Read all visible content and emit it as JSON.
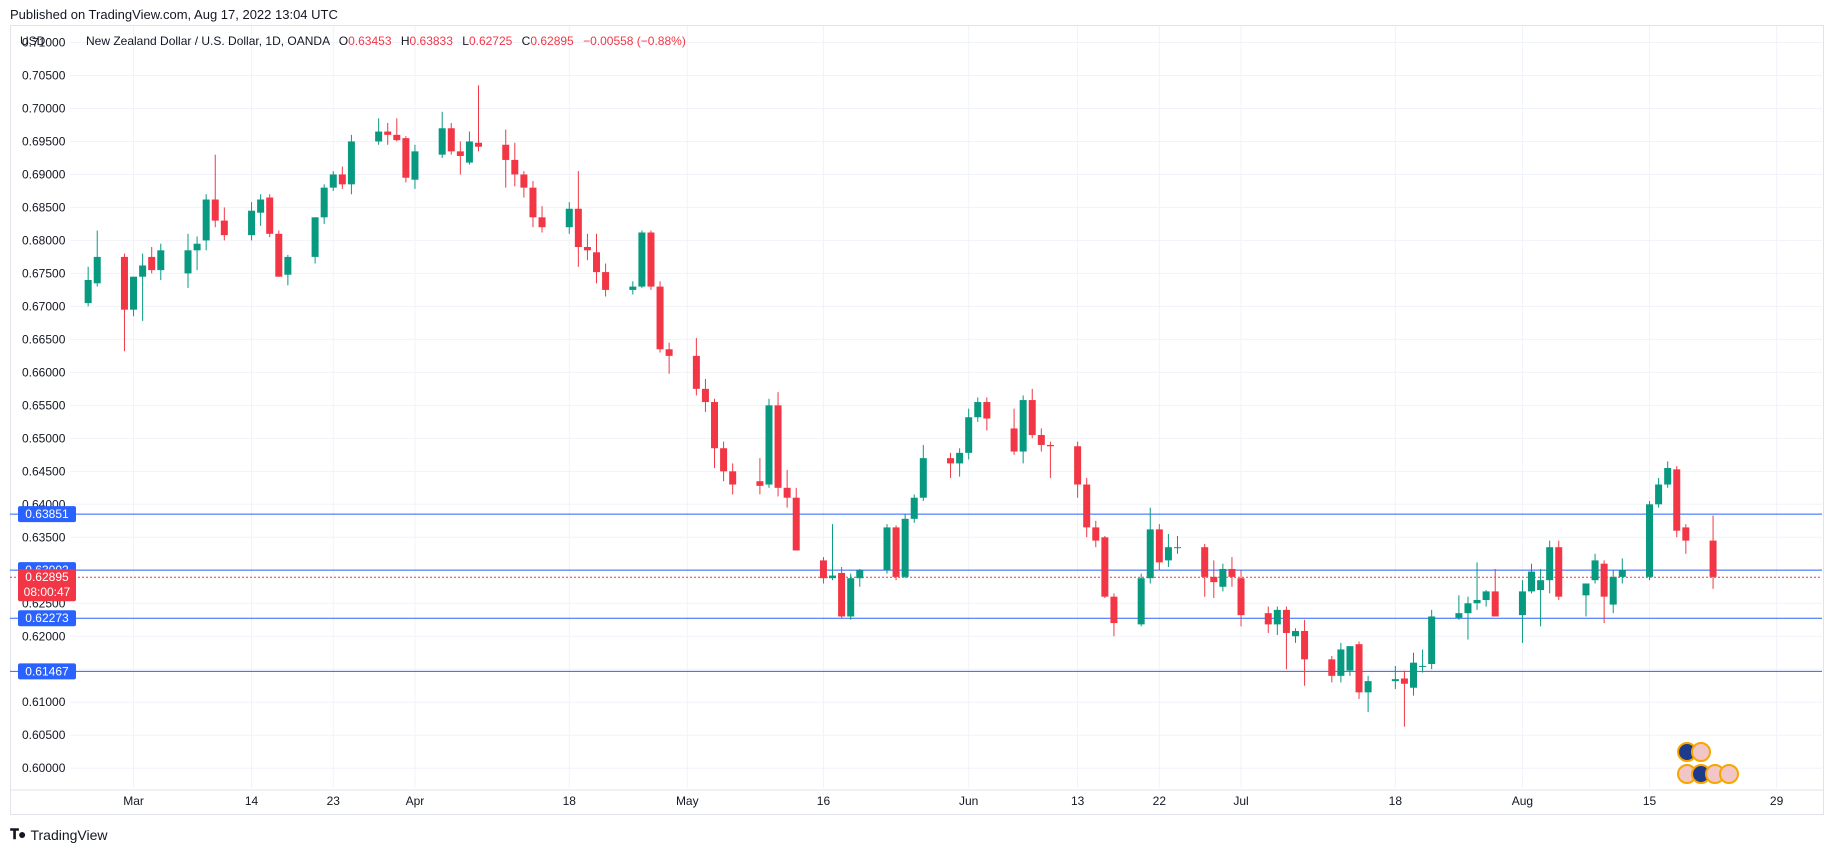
{
  "header": {
    "published_text": "Published on TradingView.com, Aug 17, 2022 13:04 UTC"
  },
  "legend": {
    "currency": "USD",
    "symbol": "New Zealand Dollar / U.S. Dollar, 1D, OANDA",
    "o_label": "O",
    "o_value": "0.63453",
    "h_label": "H",
    "h_value": "0.63833",
    "l_label": "L",
    "l_value": "0.62725",
    "c_label": "C",
    "c_value": "0.62895",
    "change": "−0.00558 (−0.88%)"
  },
  "footer": {
    "brand": "TradingView"
  },
  "chart_data": {
    "type": "candlestick",
    "y_axis": {
      "min": 0.597,
      "max": 0.7125,
      "ticks": [
        "0.71000",
        "0.70500",
        "0.70000",
        "0.69500",
        "0.69000",
        "0.68500",
        "0.68000",
        "0.67500",
        "0.67000",
        "0.66500",
        "0.66000",
        "0.65500",
        "0.65000",
        "0.64500",
        "0.64000",
        "0.63500",
        "0.63000",
        "0.62500",
        "0.62000",
        "0.61500",
        "0.61000",
        "0.60500",
        "0.60000"
      ],
      "tick_values": [
        0.71,
        0.705,
        0.7,
        0.695,
        0.69,
        0.685,
        0.68,
        0.675,
        0.67,
        0.665,
        0.66,
        0.655,
        0.65,
        0.645,
        0.64,
        0.635,
        0.63,
        0.625,
        0.62,
        0.615,
        0.61,
        0.605,
        0.6
      ]
    },
    "x_axis": {
      "labels": [
        "Mar",
        "14",
        "23",
        "Apr",
        "18",
        "May",
        "16",
        "Jun",
        "13",
        "22",
        "Jul",
        "18",
        "Aug",
        "15",
        "29"
      ],
      "label_dates": [
        "2022-03-01",
        "2022-03-14",
        "2022-03-23",
        "2022-04-01",
        "2022-04-18",
        "2022-05-01",
        "2022-05-16",
        "2022-06-01",
        "2022-06-13",
        "2022-06-22",
        "2022-07-01",
        "2022-07-18",
        "2022-08-01",
        "2022-08-15",
        "2022-08-29"
      ],
      "range": [
        "2022-02-22",
        "2022-09-03"
      ]
    },
    "grid": true,
    "colors": {
      "up": "#089981",
      "down": "#f23645",
      "hline": "#2962ff",
      "tag": "#2962ff",
      "last_tag": "#f23645"
    },
    "horizontal_lines": [
      {
        "value": 0.63851,
        "label": "0.63851"
      },
      {
        "value": 0.63002,
        "label": "0.63002"
      },
      {
        "value": 0.62273,
        "label": "0.62273"
      },
      {
        "value": 0.61467,
        "label": "0.61467"
      }
    ],
    "last_price": {
      "value": 0.62895,
      "label": "0.62895",
      "countdown": "08:00:47"
    },
    "candles": [
      {
        "d": "2022-02-24",
        "o": 0.6705,
        "h": 0.676,
        "l": 0.67,
        "c": 0.674
      },
      {
        "d": "2022-02-25",
        "o": 0.6735,
        "h": 0.6815,
        "l": 0.673,
        "c": 0.6775
      },
      {
        "d": "2022-02-28",
        "o": 0.6775,
        "h": 0.678,
        "l": 0.6632,
        "c": 0.6695
      },
      {
        "d": "2022-03-01",
        "o": 0.6695,
        "h": 0.6745,
        "l": 0.6685,
        "c": 0.6745
      },
      {
        "d": "2022-03-02",
        "o": 0.6745,
        "h": 0.678,
        "l": 0.6678,
        "c": 0.6762
      },
      {
        "d": "2022-03-03",
        "o": 0.6775,
        "h": 0.679,
        "l": 0.675,
        "c": 0.6755
      },
      {
        "d": "2022-03-04",
        "o": 0.6755,
        "h": 0.6795,
        "l": 0.674,
        "c": 0.6785
      },
      {
        "d": "2022-03-07",
        "o": 0.675,
        "h": 0.681,
        "l": 0.6728,
        "c": 0.6785
      },
      {
        "d": "2022-03-08",
        "o": 0.6785,
        "h": 0.6806,
        "l": 0.6755,
        "c": 0.6795
      },
      {
        "d": "2022-03-09",
        "o": 0.68,
        "h": 0.687,
        "l": 0.6785,
        "c": 0.6862
      },
      {
        "d": "2022-03-10",
        "o": 0.6862,
        "h": 0.693,
        "l": 0.682,
        "c": 0.683
      },
      {
        "d": "2022-03-11",
        "o": 0.683,
        "h": 0.685,
        "l": 0.68,
        "c": 0.6808
      },
      {
        "d": "2022-03-14",
        "o": 0.6808,
        "h": 0.6858,
        "l": 0.68,
        "c": 0.6845
      },
      {
        "d": "2022-03-15",
        "o": 0.6842,
        "h": 0.687,
        "l": 0.6822,
        "c": 0.6862
      },
      {
        "d": "2022-03-16",
        "o": 0.6865,
        "h": 0.687,
        "l": 0.6805,
        "c": 0.681
      },
      {
        "d": "2022-03-17",
        "o": 0.681,
        "h": 0.6815,
        "l": 0.6745,
        "c": 0.6745
      },
      {
        "d": "2022-03-18",
        "o": 0.6748,
        "h": 0.6778,
        "l": 0.6732,
        "c": 0.6775
      },
      {
        "d": "2022-03-21",
        "o": 0.6775,
        "h": 0.6835,
        "l": 0.6765,
        "c": 0.6835
      },
      {
        "d": "2022-03-22",
        "o": 0.6835,
        "h": 0.6885,
        "l": 0.6825,
        "c": 0.688
      },
      {
        "d": "2022-03-23",
        "o": 0.688,
        "h": 0.6905,
        "l": 0.6875,
        "c": 0.69
      },
      {
        "d": "2022-03-24",
        "o": 0.69,
        "h": 0.6912,
        "l": 0.6878,
        "c": 0.6885
      },
      {
        "d": "2022-03-25",
        "o": 0.6885,
        "h": 0.696,
        "l": 0.687,
        "c": 0.695
      },
      {
        "d": "2022-03-28",
        "o": 0.695,
        "h": 0.6985,
        "l": 0.6945,
        "c": 0.6965
      },
      {
        "d": "2022-03-29",
        "o": 0.6965,
        "h": 0.6978,
        "l": 0.6945,
        "c": 0.696
      },
      {
        "d": "2022-03-30",
        "o": 0.696,
        "h": 0.6985,
        "l": 0.695,
        "c": 0.6952
      },
      {
        "d": "2022-03-31",
        "o": 0.6955,
        "h": 0.6958,
        "l": 0.6888,
        "c": 0.6895
      },
      {
        "d": "2022-04-01",
        "o": 0.6892,
        "h": 0.6945,
        "l": 0.6878,
        "c": 0.6935
      },
      {
        "d": "2022-04-04",
        "o": 0.693,
        "h": 0.6995,
        "l": 0.6925,
        "c": 0.697
      },
      {
        "d": "2022-04-05",
        "o": 0.697,
        "h": 0.6978,
        "l": 0.693,
        "c": 0.6935
      },
      {
        "d": "2022-04-06",
        "o": 0.6935,
        "h": 0.695,
        "l": 0.69,
        "c": 0.6928
      },
      {
        "d": "2022-04-07",
        "o": 0.6918,
        "h": 0.6965,
        "l": 0.6915,
        "c": 0.695
      },
      {
        "d": "2022-04-08",
        "o": 0.6948,
        "h": 0.7035,
        "l": 0.6935,
        "c": 0.6942
      },
      {
        "d": "2022-04-11",
        "o": 0.6945,
        "h": 0.6968,
        "l": 0.688,
        "c": 0.6922
      },
      {
        "d": "2022-04-12",
        "o": 0.6922,
        "h": 0.6948,
        "l": 0.6882,
        "c": 0.69
      },
      {
        "d": "2022-04-13",
        "o": 0.69,
        "h": 0.6905,
        "l": 0.6865,
        "c": 0.688
      },
      {
        "d": "2022-04-14",
        "o": 0.688,
        "h": 0.689,
        "l": 0.682,
        "c": 0.6835
      },
      {
        "d": "2022-04-15",
        "o": 0.6835,
        "h": 0.6852,
        "l": 0.6812,
        "c": 0.682
      },
      {
        "d": "2022-04-18",
        "o": 0.682,
        "h": 0.6858,
        "l": 0.681,
        "c": 0.6848
      },
      {
        "d": "2022-04-19",
        "o": 0.6848,
        "h": 0.6905,
        "l": 0.676,
        "c": 0.679
      },
      {
        "d": "2022-04-20",
        "o": 0.679,
        "h": 0.681,
        "l": 0.677,
        "c": 0.6785
      },
      {
        "d": "2022-04-21",
        "o": 0.6782,
        "h": 0.681,
        "l": 0.6735,
        "c": 0.6752
      },
      {
        "d": "2022-04-22",
        "o": 0.6752,
        "h": 0.6765,
        "l": 0.6715,
        "c": 0.6725
      },
      {
        "d": "2022-04-25",
        "o": 0.6725,
        "h": 0.6738,
        "l": 0.6718,
        "c": 0.673
      },
      {
        "d": "2022-04-26",
        "o": 0.673,
        "h": 0.6815,
        "l": 0.6728,
        "c": 0.6812
      },
      {
        "d": "2022-04-27",
        "o": 0.6812,
        "h": 0.6815,
        "l": 0.6725,
        "c": 0.673
      },
      {
        "d": "2022-04-28",
        "o": 0.673,
        "h": 0.6738,
        "l": 0.663,
        "c": 0.6635
      },
      {
        "d": "2022-04-29",
        "o": 0.6635,
        "h": 0.6645,
        "l": 0.6598,
        "c": 0.6625
      },
      {
        "d": "2022-05-02",
        "o": 0.6625,
        "h": 0.6652,
        "l": 0.6565,
        "c": 0.6575
      },
      {
        "d": "2022-05-03",
        "o": 0.6575,
        "h": 0.659,
        "l": 0.654,
        "c": 0.6555
      },
      {
        "d": "2022-05-04",
        "o": 0.6555,
        "h": 0.656,
        "l": 0.6455,
        "c": 0.6485
      },
      {
        "d": "2022-05-05",
        "o": 0.6485,
        "h": 0.6495,
        "l": 0.6435,
        "c": 0.645
      },
      {
        "d": "2022-05-06",
        "o": 0.645,
        "h": 0.6462,
        "l": 0.6415,
        "c": 0.643
      },
      {
        "d": "2022-05-09",
        "o": 0.6435,
        "h": 0.647,
        "l": 0.6415,
        "c": 0.6428
      },
      {
        "d": "2022-05-10",
        "o": 0.643,
        "h": 0.656,
        "l": 0.6425,
        "c": 0.655
      },
      {
        "d": "2022-05-11",
        "o": 0.655,
        "h": 0.657,
        "l": 0.6412,
        "c": 0.6425
      },
      {
        "d": "2022-05-12",
        "o": 0.6425,
        "h": 0.6452,
        "l": 0.6395,
        "c": 0.641
      },
      {
        "d": "2022-05-13",
        "o": 0.641,
        "h": 0.6425,
        "l": 0.633,
        "c": 0.633
      },
      {
        "d": "2022-05-16",
        "o": 0.6315,
        "h": 0.632,
        "l": 0.628,
        "c": 0.6288
      },
      {
        "d": "2022-05-17",
        "o": 0.6288,
        "h": 0.637,
        "l": 0.6285,
        "c": 0.6292
      },
      {
        "d": "2022-05-18",
        "o": 0.6296,
        "h": 0.6305,
        "l": 0.6228,
        "c": 0.623
      },
      {
        "d": "2022-05-19",
        "o": 0.623,
        "h": 0.6295,
        "l": 0.6225,
        "c": 0.6288
      },
      {
        "d": "2022-05-20",
        "o": 0.6288,
        "h": 0.6302,
        "l": 0.6275,
        "c": 0.63
      },
      {
        "d": "2022-05-23",
        "o": 0.63,
        "h": 0.637,
        "l": 0.6295,
        "c": 0.6365
      },
      {
        "d": "2022-05-24",
        "o": 0.6365,
        "h": 0.6368,
        "l": 0.6285,
        "c": 0.629
      },
      {
        "d": "2022-05-25",
        "o": 0.629,
        "h": 0.6385,
        "l": 0.6288,
        "c": 0.6378
      },
      {
        "d": "2022-05-26",
        "o": 0.6378,
        "h": 0.6415,
        "l": 0.6372,
        "c": 0.641
      },
      {
        "d": "2022-05-27",
        "o": 0.641,
        "h": 0.649,
        "l": 0.6405,
        "c": 0.647
      },
      {
        "d": "2022-05-30",
        "o": 0.647,
        "h": 0.6478,
        "l": 0.644,
        "c": 0.6462
      },
      {
        "d": "2022-05-31",
        "o": 0.6462,
        "h": 0.6485,
        "l": 0.6442,
        "c": 0.6478
      },
      {
        "d": "2022-06-01",
        "o": 0.6478,
        "h": 0.6545,
        "l": 0.6468,
        "c": 0.6532
      },
      {
        "d": "2022-06-02",
        "o": 0.6532,
        "h": 0.6562,
        "l": 0.6525,
        "c": 0.6555
      },
      {
        "d": "2022-06-03",
        "o": 0.6555,
        "h": 0.6562,
        "l": 0.6512,
        "c": 0.653
      },
      {
        "d": "2022-06-06",
        "o": 0.6515,
        "h": 0.6545,
        "l": 0.6475,
        "c": 0.648
      },
      {
        "d": "2022-06-07",
        "o": 0.648,
        "h": 0.6565,
        "l": 0.6462,
        "c": 0.6558
      },
      {
        "d": "2022-06-08",
        "o": 0.6558,
        "h": 0.6575,
        "l": 0.65,
        "c": 0.6505
      },
      {
        "d": "2022-06-09",
        "o": 0.6505,
        "h": 0.6515,
        "l": 0.648,
        "c": 0.649
      },
      {
        "d": "2022-06-10",
        "o": 0.649,
        "h": 0.6495,
        "l": 0.644,
        "c": 0.6488
      },
      {
        "d": "2022-06-13",
        "o": 0.6488,
        "h": 0.6495,
        "l": 0.641,
        "c": 0.643
      },
      {
        "d": "2022-06-14",
        "o": 0.643,
        "h": 0.644,
        "l": 0.635,
        "c": 0.6365
      },
      {
        "d": "2022-06-15",
        "o": 0.6365,
        "h": 0.6375,
        "l": 0.6335,
        "c": 0.6345
      },
      {
        "d": "2022-06-16",
        "o": 0.635,
        "h": 0.6352,
        "l": 0.6258,
        "c": 0.626
      },
      {
        "d": "2022-06-17",
        "o": 0.626,
        "h": 0.6265,
        "l": 0.62,
        "c": 0.622
      },
      {
        "d": "2022-06-20",
        "o": 0.6218,
        "h": 0.6295,
        "l": 0.6215,
        "c": 0.6288
      },
      {
        "d": "2022-06-21",
        "o": 0.6288,
        "h": 0.6395,
        "l": 0.628,
        "c": 0.6362
      },
      {
        "d": "2022-06-22",
        "o": 0.6362,
        "h": 0.637,
        "l": 0.63,
        "c": 0.6312
      },
      {
        "d": "2022-06-23",
        "o": 0.6315,
        "h": 0.6355,
        "l": 0.6305,
        "c": 0.6335
      },
      {
        "d": "2022-06-24",
        "o": 0.6335,
        "h": 0.6352,
        "l": 0.6325,
        "c": 0.6335
      },
      {
        "d": "2022-06-27",
        "o": 0.6335,
        "h": 0.634,
        "l": 0.626,
        "c": 0.629
      },
      {
        "d": "2022-06-28",
        "o": 0.629,
        "h": 0.6315,
        "l": 0.6258,
        "c": 0.6282
      },
      {
        "d": "2022-06-29",
        "o": 0.6275,
        "h": 0.631,
        "l": 0.6268,
        "c": 0.6302
      },
      {
        "d": "2022-06-30",
        "o": 0.6302,
        "h": 0.632,
        "l": 0.6275,
        "c": 0.629
      },
      {
        "d": "2022-07-01",
        "o": 0.6288,
        "h": 0.63,
        "l": 0.6215,
        "c": 0.6232
      },
      {
        "d": "2022-07-04",
        "o": 0.6235,
        "h": 0.6245,
        "l": 0.6205,
        "c": 0.6218
      },
      {
        "d": "2022-07-05",
        "o": 0.6218,
        "h": 0.6245,
        "l": 0.6202,
        "c": 0.624
      },
      {
        "d": "2022-07-06",
        "o": 0.624,
        "h": 0.6245,
        "l": 0.615,
        "c": 0.6205
      },
      {
        "d": "2022-07-07",
        "o": 0.62,
        "h": 0.6212,
        "l": 0.619,
        "c": 0.6208
      },
      {
        "d": "2022-07-08",
        "o": 0.6208,
        "h": 0.6225,
        "l": 0.6125,
        "c": 0.6165
      },
      {
        "d": "2022-07-11",
        "o": 0.6165,
        "h": 0.617,
        "l": 0.613,
        "c": 0.614
      },
      {
        "d": "2022-07-12",
        "o": 0.614,
        "h": 0.619,
        "l": 0.613,
        "c": 0.618
      },
      {
        "d": "2022-07-13",
        "o": 0.6148,
        "h": 0.6185,
        "l": 0.614,
        "c": 0.6185
      },
      {
        "d": "2022-07-14",
        "o": 0.6188,
        "h": 0.6192,
        "l": 0.6105,
        "c": 0.6115
      },
      {
        "d": "2022-07-15",
        "o": 0.6115,
        "h": 0.614,
        "l": 0.6085,
        "c": 0.6132
      },
      {
        "d": "2022-07-18",
        "o": 0.6132,
        "h": 0.6155,
        "l": 0.612,
        "c": 0.6135
      },
      {
        "d": "2022-07-19",
        "o": 0.6136,
        "h": 0.6148,
        "l": 0.6063,
        "c": 0.6128
      },
      {
        "d": "2022-07-20",
        "o": 0.6122,
        "h": 0.6175,
        "l": 0.611,
        "c": 0.616
      },
      {
        "d": "2022-07-21",
        "o": 0.6155,
        "h": 0.618,
        "l": 0.6145,
        "c": 0.6155
      },
      {
        "d": "2022-07-22",
        "o": 0.6158,
        "h": 0.624,
        "l": 0.615,
        "c": 0.623
      },
      {
        "d": "2022-07-25",
        "o": 0.6228,
        "h": 0.6262,
        "l": 0.6225,
        "c": 0.6235
      },
      {
        "d": "2022-07-26",
        "o": 0.6235,
        "h": 0.626,
        "l": 0.6195,
        "c": 0.625
      },
      {
        "d": "2022-07-27",
        "o": 0.625,
        "h": 0.6312,
        "l": 0.624,
        "c": 0.6255
      },
      {
        "d": "2022-07-28",
        "o": 0.6255,
        "h": 0.627,
        "l": 0.6245,
        "c": 0.6268
      },
      {
        "d": "2022-07-29",
        "o": 0.6268,
        "h": 0.6302,
        "l": 0.6235,
        "c": 0.623
      },
      {
        "d": "2022-08-01",
        "o": 0.6232,
        "h": 0.6285,
        "l": 0.619,
        "c": 0.6268
      },
      {
        "d": "2022-08-02",
        "o": 0.6268,
        "h": 0.631,
        "l": 0.6265,
        "c": 0.6298
      },
      {
        "d": "2022-08-03",
        "o": 0.627,
        "h": 0.6302,
        "l": 0.6215,
        "c": 0.6285
      },
      {
        "d": "2022-08-04",
        "o": 0.6285,
        "h": 0.6345,
        "l": 0.6265,
        "c": 0.6335
      },
      {
        "d": "2022-08-05",
        "o": 0.6335,
        "h": 0.6345,
        "l": 0.6255,
        "c": 0.626
      },
      {
        "d": "2022-08-08",
        "o": 0.6262,
        "h": 0.628,
        "l": 0.623,
        "c": 0.628
      },
      {
        "d": "2022-08-09",
        "o": 0.6285,
        "h": 0.6325,
        "l": 0.628,
        "c": 0.6315
      },
      {
        "d": "2022-08-10",
        "o": 0.631,
        "h": 0.6315,
        "l": 0.622,
        "c": 0.626
      },
      {
        "d": "2022-08-11",
        "o": 0.6248,
        "h": 0.63,
        "l": 0.6235,
        "c": 0.629
      },
      {
        "d": "2022-08-12",
        "o": 0.629,
        "h": 0.6318,
        "l": 0.628,
        "c": 0.63
      },
      {
        "d": "2022-08-15",
        "o": 0.629,
        "h": 0.6405,
        "l": 0.6285,
        "c": 0.64
      },
      {
        "d": "2022-08-16",
        "o": 0.64,
        "h": 0.644,
        "l": 0.6395,
        "c": 0.643
      },
      {
        "d": "2022-08-17",
        "o": 0.643,
        "h": 0.6465,
        "l": 0.6425,
        "c": 0.6455
      },
      {
        "d": "2022-08-18",
        "o": 0.6453,
        "h": 0.6458,
        "l": 0.635,
        "c": 0.636
      },
      {
        "d": "2022-08-19",
        "o": 0.6365,
        "h": 0.637,
        "l": 0.6325,
        "c": 0.6345
      },
      {
        "d": "2022-08-22",
        "o": 0.6345,
        "h": 0.6383,
        "l": 0.6272,
        "c": 0.629
      }
    ]
  }
}
